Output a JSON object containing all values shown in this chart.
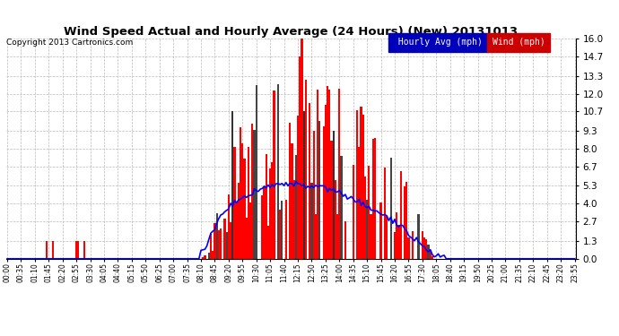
{
  "title": "Wind Speed Actual and Hourly Average (24 Hours) (New) 20131013",
  "copyright": "Copyright 2013 Cartronics.com",
  "ylim": [
    0.0,
    16.0
  ],
  "yticks": [
    0.0,
    1.3,
    2.7,
    4.0,
    5.3,
    6.7,
    8.0,
    9.3,
    10.7,
    12.0,
    13.3,
    14.7,
    16.0
  ],
  "background_color": "#ffffff",
  "plot_bg_color": "#ffffff",
  "grid_color": "#bbbbbb",
  "bar_color": "#ff0000",
  "line_color": "#0000ff",
  "dark_bar_color": "#333333",
  "legend_hourly_bg": "#0000bb",
  "legend_wind_bg": "#cc0000",
  "time_labels": [
    "00:00",
    "00:35",
    "01:10",
    "01:45",
    "02:20",
    "02:55",
    "03:30",
    "04:05",
    "04:40",
    "05:15",
    "05:50",
    "06:25",
    "07:00",
    "07:35",
    "08:10",
    "08:45",
    "09:20",
    "09:55",
    "10:30",
    "11:05",
    "11:40",
    "12:15",
    "12:50",
    "13:25",
    "14:00",
    "14:35",
    "15:10",
    "15:45",
    "16:20",
    "16:55",
    "17:30",
    "18:05",
    "18:40",
    "19:15",
    "19:50",
    "20:25",
    "21:00",
    "21:35",
    "22:10",
    "22:45",
    "23:20",
    "23:55"
  ],
  "n_points": 288
}
